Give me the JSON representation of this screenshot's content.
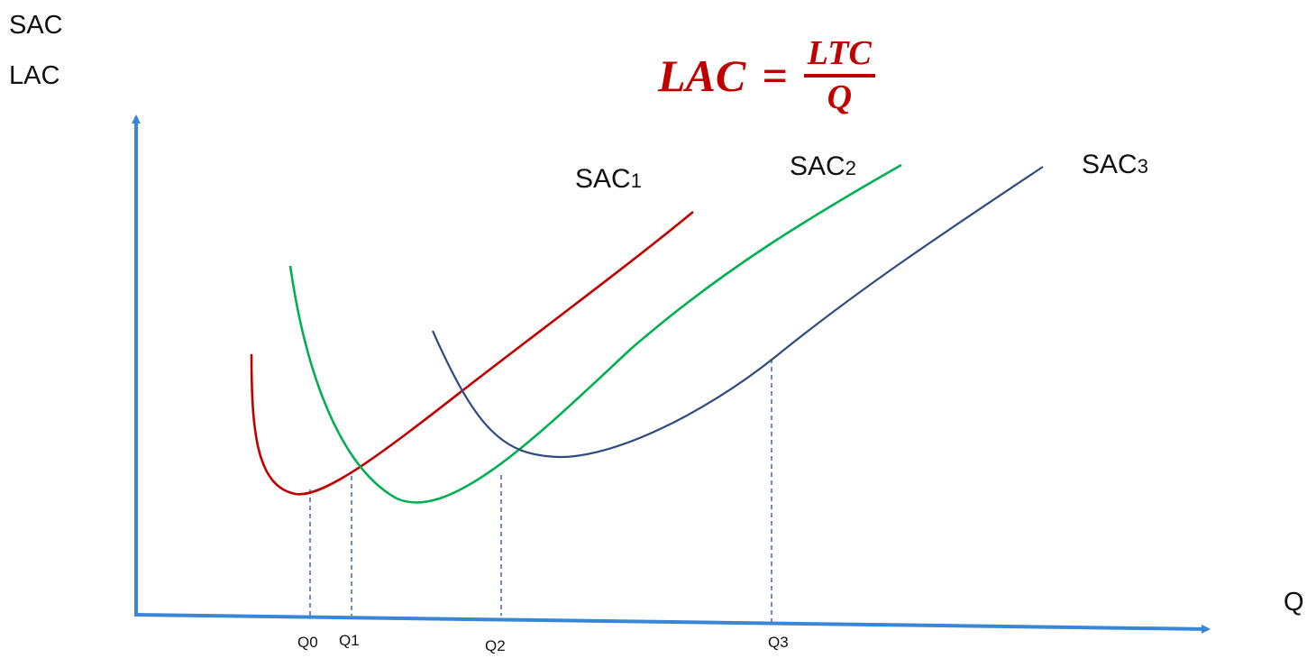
{
  "y_axis_labels": [
    "SAC",
    "LAC"
  ],
  "x_axis_label": "Q",
  "formula": {
    "lhs": "LAC",
    "equals": "=",
    "numerator": "LTC",
    "denominator": "Q",
    "color": "#c00000"
  },
  "curve_labels": [
    {
      "base": "SAC",
      "sub": "1"
    },
    {
      "base": "SAC",
      "sub": "2"
    },
    {
      "base": "SAC",
      "sub": "3"
    }
  ],
  "quantity_ticks": [
    "Q0",
    "Q1",
    "Q2",
    "Q3"
  ],
  "colors": {
    "axis": "#3a86d6",
    "sac1": "#c00000",
    "sac2": "#00b050",
    "sac3": "#2f4a7f",
    "guide": "#4a6fb0"
  }
}
